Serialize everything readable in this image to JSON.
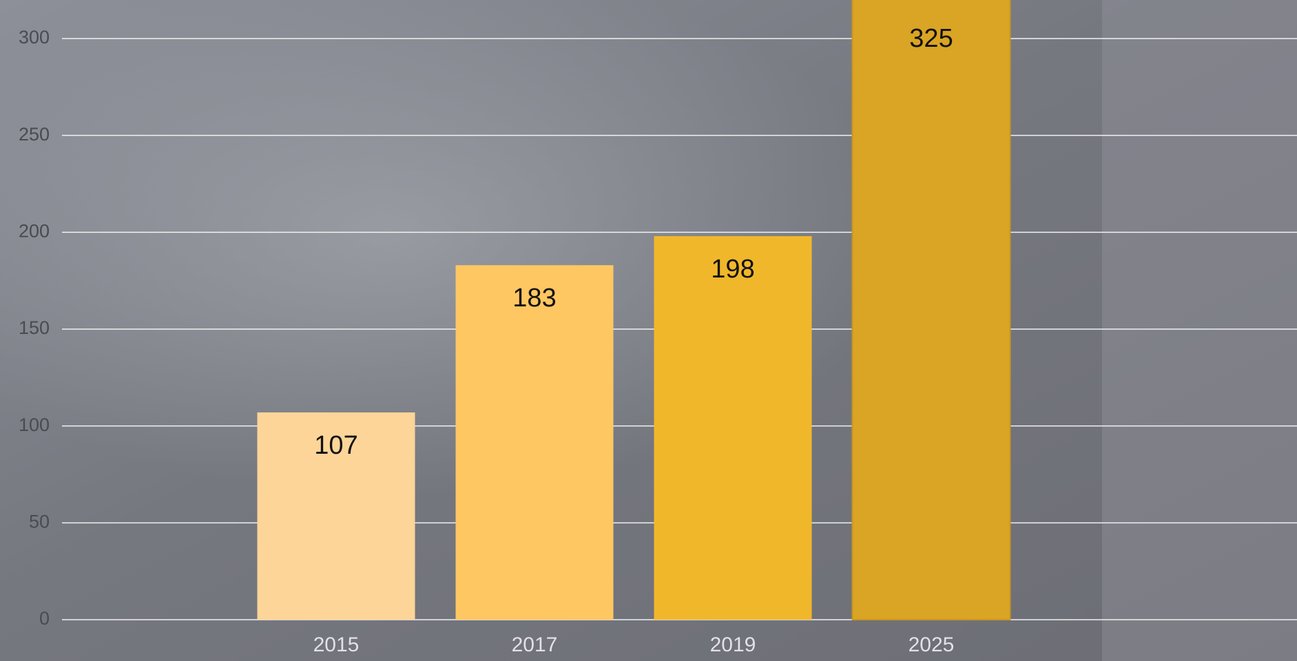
{
  "chart_data": {
    "type": "bar",
    "categories": [
      "2015",
      "2017",
      "2019",
      "2025"
    ],
    "values": [
      107,
      183,
      198,
      325
    ],
    "colors": [
      "#fdd598",
      "#fec762",
      "#f1b72b",
      "#daa424"
    ],
    "ylim": [
      0,
      300
    ],
    "yticks": [
      0,
      50,
      100,
      150,
      200,
      250,
      300
    ],
    "grid": true
  }
}
